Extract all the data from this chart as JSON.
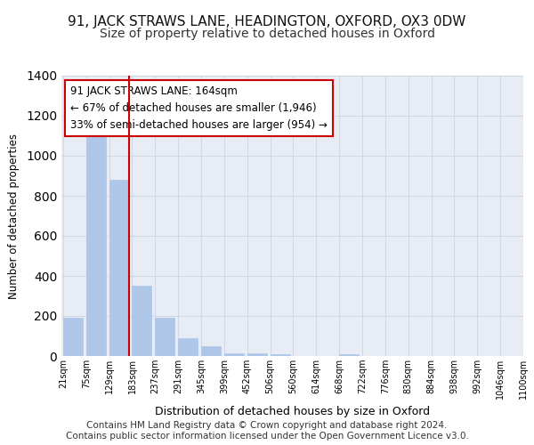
{
  "title_line1": "91, JACK STRAWS LANE, HEADINGTON, OXFORD, OX3 0DW",
  "title_line2": "Size of property relative to detached houses in Oxford",
  "xlabel": "Distribution of detached houses by size in Oxford",
  "ylabel": "Number of detached properties",
  "bin_edges": [
    "21sqm",
    "75sqm",
    "129sqm",
    "183sqm",
    "237sqm",
    "291sqm",
    "345sqm",
    "399sqm",
    "452sqm",
    "506sqm",
    "560sqm",
    "614sqm",
    "668sqm",
    "722sqm",
    "776sqm",
    "830sqm",
    "884sqm",
    "938sqm",
    "992sqm",
    "1046sqm",
    "1100sqm"
  ],
  "bar_values": [
    190,
    1110,
    880,
    350,
    190,
    90,
    50,
    15,
    15,
    10,
    0,
    0,
    10,
    0,
    0,
    0,
    0,
    0,
    0,
    0
  ],
  "bar_color": "#aec6e8",
  "bar_edge_color": "#aec6e8",
  "grid_color": "#d0d8e8",
  "background_color": "#e8edf5",
  "vline_color": "#cc0000",
  "annotation_text": "91 JACK STRAWS LANE: 164sqm\n← 67% of detached houses are smaller (1,946)\n33% of semi-detached houses are larger (954) →",
  "annotation_box_color": "#ffffff",
  "annotation_box_edge": "#cc0000",
  "ylim": [
    0,
    1400
  ],
  "yticks": [
    0,
    200,
    400,
    600,
    800,
    1000,
    1200,
    1400
  ],
  "footer": "Contains HM Land Registry data © Crown copyright and database right 2024.\nContains public sector information licensed under the Open Government Licence v3.0.",
  "title_fontsize": 11,
  "subtitle_fontsize": 10,
  "annotation_fontsize": 8.5,
  "footer_fontsize": 7.5
}
